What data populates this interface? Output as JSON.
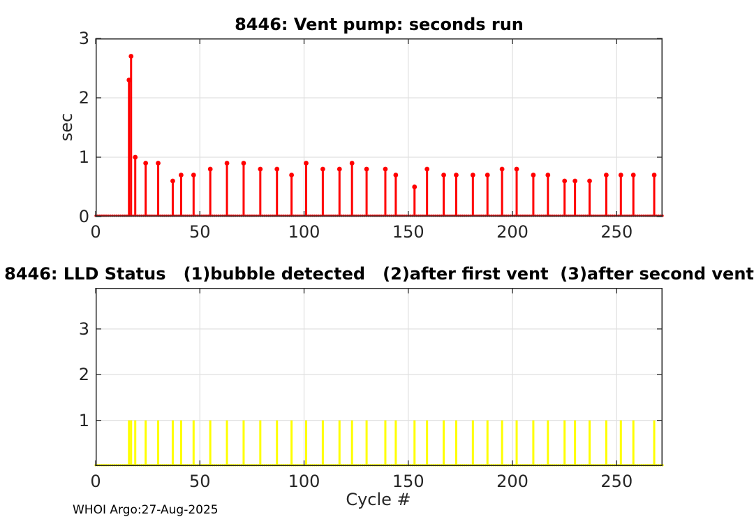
{
  "figure": {
    "footer_text": "WHOI Argo:27-Aug-2025",
    "background_color": "#ffffff",
    "axis_color": "#262626",
    "grid_color": "#e0e0e0"
  },
  "chart_data": [
    {
      "type": "stem",
      "title": "8446: Vent pump: seconds run",
      "xlabel": "",
      "ylabel": "sec",
      "xlim": [
        0,
        272
      ],
      "ylim": [
        0,
        3
      ],
      "xticks": [
        0,
        50,
        100,
        150,
        200,
        250
      ],
      "yticks": [
        0,
        1,
        2,
        3
      ],
      "grid": true,
      "legend": "none",
      "color": "#ff0000",
      "zero_marker_cycles": [
        0,
        272
      ],
      "points": [
        [
          16,
          2.3
        ],
        [
          17,
          2.7
        ],
        [
          19,
          1.0
        ],
        [
          24,
          0.9
        ],
        [
          30,
          0.9
        ],
        [
          37,
          0.6
        ],
        [
          41,
          0.7
        ],
        [
          47,
          0.7
        ],
        [
          55,
          0.8
        ],
        [
          63,
          0.9
        ],
        [
          71,
          0.9
        ],
        [
          79,
          0.8
        ],
        [
          87,
          0.8
        ],
        [
          94,
          0.7
        ],
        [
          101,
          0.9
        ],
        [
          109,
          0.8
        ],
        [
          117,
          0.8
        ],
        [
          123,
          0.9
        ],
        [
          130,
          0.8
        ],
        [
          139,
          0.8
        ],
        [
          144,
          0.7
        ],
        [
          153,
          0.5
        ],
        [
          159,
          0.8
        ],
        [
          167,
          0.7
        ],
        [
          173,
          0.7
        ],
        [
          181,
          0.7
        ],
        [
          188,
          0.7
        ],
        [
          195,
          0.8
        ],
        [
          202,
          0.8
        ],
        [
          210,
          0.7
        ],
        [
          217,
          0.7
        ],
        [
          225,
          0.6
        ],
        [
          230,
          0.6
        ],
        [
          237,
          0.6
        ],
        [
          245,
          0.7
        ],
        [
          252,
          0.7
        ],
        [
          258,
          0.7
        ],
        [
          268,
          0.7
        ]
      ]
    },
    {
      "type": "bar",
      "title": "8446: LLD Status   (1)bubble detected   (2)after first vent  (3)after second vent",
      "xlabel": "Cycle #",
      "ylabel": "",
      "xlim": [
        0,
        272
      ],
      "ylim": [
        0,
        3.9
      ],
      "xticks": [
        0,
        50,
        100,
        150,
        200,
        250
      ],
      "yticks": [
        1,
        2,
        3
      ],
      "grid": true,
      "legend": "none",
      "color": "#ffff00",
      "zero_marker_cycles": [
        0,
        272
      ],
      "bar_value": 1,
      "bars_x": [
        16,
        17,
        19,
        24,
        30,
        37,
        41,
        47,
        55,
        63,
        71,
        79,
        87,
        94,
        101,
        109,
        117,
        123,
        130,
        139,
        144,
        153,
        159,
        167,
        173,
        181,
        188,
        195,
        202,
        210,
        217,
        225,
        230,
        237,
        245,
        252,
        258,
        268
      ]
    }
  ]
}
